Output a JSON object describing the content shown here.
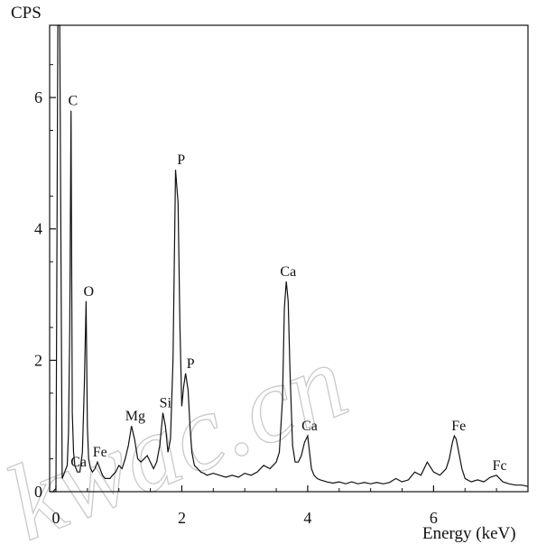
{
  "chart_data": {
    "type": "line",
    "title": "",
    "ylabel": "CPS",
    "xlabel": "Energy (keV)",
    "xlim": [
      -0.1,
      7.5
    ],
    "ylim": [
      0,
      7.1
    ],
    "x_ticks": [
      0,
      2,
      4,
      6
    ],
    "y_ticks": [
      0,
      2,
      4,
      6
    ],
    "grid": false,
    "series": [
      {
        "x": [
          -0.05,
          0.0,
          0.03,
          0.06,
          0.1,
          0.14,
          0.18,
          0.2,
          0.22,
          0.24,
          0.26,
          0.28,
          0.3,
          0.34,
          0.38,
          0.42,
          0.45,
          0.48,
          0.5,
          0.52,
          0.55,
          0.58,
          0.62,
          0.66,
          0.7,
          0.74,
          0.78,
          0.82,
          0.86,
          0.9,
          0.95,
          1.0,
          1.05,
          1.1,
          1.15,
          1.2,
          1.25,
          1.3,
          1.35,
          1.4,
          1.45,
          1.5,
          1.55,
          1.6,
          1.65,
          1.7,
          1.74,
          1.78,
          1.82,
          1.86,
          1.9,
          1.94,
          1.97,
          2.0,
          2.03,
          2.06,
          2.1,
          2.13,
          2.16,
          2.2,
          2.25,
          2.3,
          2.35,
          2.4,
          2.5,
          2.6,
          2.7,
          2.8,
          2.9,
          3.0,
          3.1,
          3.2,
          3.3,
          3.4,
          3.5,
          3.55,
          3.6,
          3.63,
          3.66,
          3.69,
          3.72,
          3.76,
          3.8,
          3.85,
          3.9,
          3.95,
          4.0,
          4.03,
          4.06,
          4.1,
          4.15,
          4.2,
          4.3,
          4.4,
          4.5,
          4.6,
          4.7,
          4.8,
          4.9,
          5.0,
          5.1,
          5.2,
          5.3,
          5.4,
          5.5,
          5.6,
          5.7,
          5.8,
          5.9,
          6.0,
          6.1,
          6.2,
          6.25,
          6.3,
          6.33,
          6.36,
          6.4,
          6.45,
          6.5,
          6.6,
          6.7,
          6.8,
          6.9,
          7.0,
          7.1,
          7.2,
          7.3,
          7.4,
          7.5
        ],
        "y": [
          0.0,
          0.05,
          7.1,
          7.1,
          0.2,
          0.3,
          0.4,
          0.9,
          2.5,
          5.8,
          1.2,
          0.6,
          0.4,
          0.3,
          0.3,
          0.6,
          1.6,
          2.9,
          1.0,
          0.5,
          0.35,
          0.3,
          0.35,
          0.45,
          0.35,
          0.25,
          0.2,
          0.2,
          0.2,
          0.25,
          0.3,
          0.4,
          0.35,
          0.5,
          0.7,
          1.0,
          0.8,
          0.5,
          0.45,
          0.5,
          0.55,
          0.45,
          0.35,
          0.45,
          0.7,
          1.2,
          1.0,
          0.6,
          0.8,
          2.0,
          4.9,
          4.4,
          2.5,
          1.3,
          1.6,
          1.8,
          1.55,
          1.0,
          0.6,
          0.4,
          0.35,
          0.3,
          0.28,
          0.25,
          0.28,
          0.25,
          0.22,
          0.25,
          0.22,
          0.28,
          0.25,
          0.3,
          0.4,
          0.35,
          0.45,
          0.6,
          1.4,
          2.8,
          3.2,
          2.9,
          1.8,
          0.7,
          0.45,
          0.45,
          0.55,
          0.75,
          0.85,
          0.6,
          0.35,
          0.25,
          0.2,
          0.18,
          0.15,
          0.13,
          0.15,
          0.12,
          0.15,
          0.12,
          0.14,
          0.12,
          0.14,
          0.12,
          0.14,
          0.2,
          0.15,
          0.18,
          0.3,
          0.25,
          0.45,
          0.3,
          0.25,
          0.35,
          0.5,
          0.75,
          0.85,
          0.8,
          0.6,
          0.35,
          0.2,
          0.15,
          0.18,
          0.15,
          0.22,
          0.25,
          0.15,
          0.12,
          0.1,
          0.1,
          0.08
        ]
      }
    ],
    "annotations": [
      {
        "text": "C",
        "x": 0.27,
        "y": 5.8
      },
      {
        "text": "O",
        "x": 0.52,
        "y": 2.9
      },
      {
        "text": "Ca",
        "x": 0.36,
        "y": 0.3
      },
      {
        "text": "Fe",
        "x": 0.7,
        "y": 0.45
      },
      {
        "text": "Mg",
        "x": 1.26,
        "y": 1.0
      },
      {
        "text": "Si",
        "x": 1.74,
        "y": 1.2
      },
      {
        "text": "P",
        "x": 1.99,
        "y": 4.9
      },
      {
        "text": "P",
        "x": 2.14,
        "y": 1.8
      },
      {
        "text": "Ca",
        "x": 3.69,
        "y": 3.2
      },
      {
        "text": "Ca",
        "x": 4.03,
        "y": 0.85
      },
      {
        "text": "Fe",
        "x": 6.4,
        "y": 0.85
      },
      {
        "text": "Fc",
        "x": 7.05,
        "y": 0.25
      }
    ],
    "watermark": "kwac.cn"
  }
}
